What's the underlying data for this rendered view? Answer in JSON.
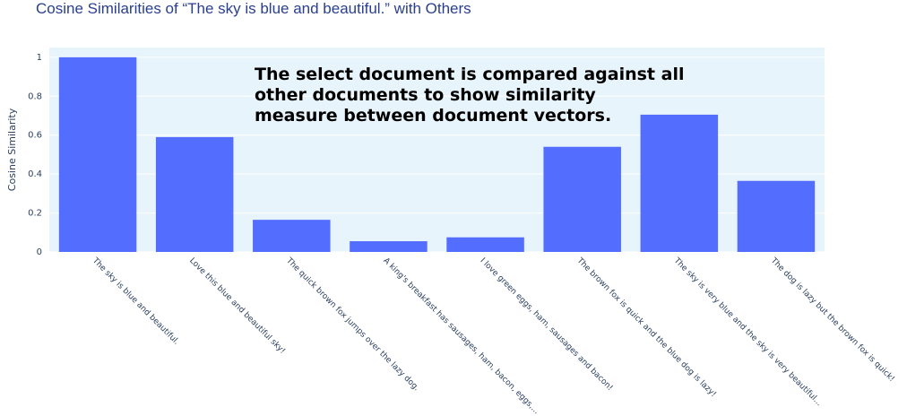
{
  "chart_data": {
    "type": "bar",
    "title": "Cosine Similarities of “The sky is blue and beautiful.” with Others",
    "xlabel": "",
    "ylabel": "Cosine Similarity",
    "ylim": [
      0,
      1.05
    ],
    "yticks": [
      0,
      0.2,
      0.4,
      0.6,
      0.8,
      1
    ],
    "ytick_labels": [
      "0",
      "0.2",
      "0.4",
      "0.6",
      "0.8",
      "1"
    ],
    "grid": true,
    "categories": [
      "The sky is blue and beautiful.",
      "Love this blue and beautiful sky!",
      "The quick brown fox jumps over the lazy dog.",
      "A king's breakfast has sausages, ham, bacon, eggs,...",
      "I love green eggs, ham, sausages and bacon!",
      "The brown fox is quick and the blue dog is lazy!",
      "The sky is very blue and the sky is very beautiful...",
      "The dog is lazy but the brown fox is quick!"
    ],
    "values": [
      1.0,
      0.59,
      0.165,
      0.055,
      0.075,
      0.54,
      0.705,
      0.365
    ],
    "bar_color": "#536dfe",
    "plot_bg": "#e8f4fb",
    "annotation": [
      "The select document is compared against all",
      "other documents to show similarity",
      "measure between document vectors."
    ]
  }
}
